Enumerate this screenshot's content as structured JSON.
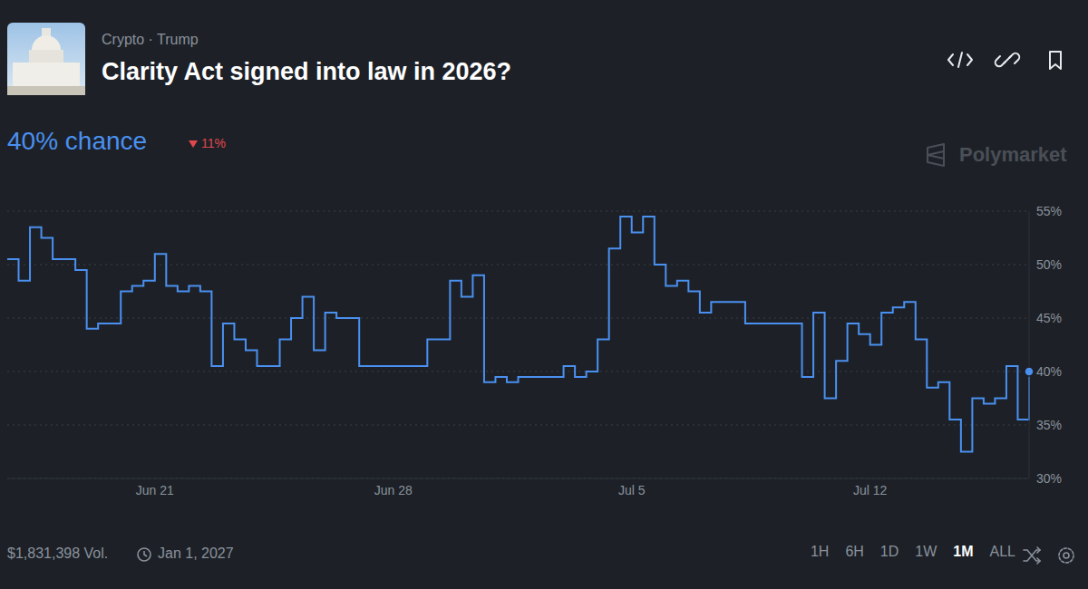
{
  "chart_data": {
    "type": "line",
    "title": "Clarity Act signed into law in 2026?",
    "subtitle": "Crypto · Trump",
    "headline": "40% chance",
    "change": "11%",
    "watermark": "Polymarket",
    "volume": "$1,831,398 Vol.",
    "end_date": "Jan 1, 2027",
    "ranges": [
      "1H",
      "6H",
      "1D",
      "1W",
      "1M",
      "ALL"
    ],
    "selected_range": "1M",
    "categories": [
      null,
      null,
      null,
      null,
      null,
      null,
      null,
      null,
      null,
      null,
      null,
      null,
      null,
      "Jun 21",
      null,
      null,
      null,
      null,
      null,
      null,
      null,
      null,
      null,
      null,
      null,
      null,
      null,
      null,
      null,
      null,
      null,
      null,
      null,
      null,
      "Jun 28",
      null,
      null,
      null,
      null,
      null,
      null,
      null,
      null,
      null,
      null,
      null,
      null,
      null,
      null,
      null,
      null,
      null,
      null,
      null,
      null,
      "Jul 5",
      null,
      null,
      null,
      null,
      null,
      null,
      null,
      null,
      null,
      null,
      null,
      null,
      null,
      null,
      null,
      null,
      null,
      null,
      null,
      null,
      "Jul 12",
      null,
      null,
      null,
      null,
      null,
      null,
      null,
      null,
      null,
      null,
      null,
      null,
      null,
      null
    ],
    "values": [
      50.5,
      48.5,
      53.5,
      52.5,
      50.5,
      50.5,
      49.5,
      44,
      44.5,
      44.5,
      47.5,
      48,
      48.5,
      51,
      48,
      47.5,
      48,
      47.5,
      40.5,
      44.5,
      43,
      42,
      40.5,
      40.5,
      43,
      45,
      47,
      42,
      45.5,
      45,
      45,
      40.5,
      40.5,
      40.5,
      40.5,
      40.5,
      40.5,
      43,
      43,
      48.5,
      47,
      49,
      39,
      39.5,
      39,
      39.5,
      39.5,
      39.5,
      39.5,
      40.5,
      39.5,
      40,
      43,
      51.5,
      54.5,
      53,
      54.5,
      50,
      48,
      48.5,
      47.5,
      45.5,
      46.5,
      46.5,
      46.5,
      44.5,
      44.5,
      44.5,
      44.5,
      44.5,
      39.5,
      45.5,
      37.5,
      41,
      44.5,
      43.5,
      42.5,
      45.5,
      46,
      46.5,
      43,
      38.5,
      39,
      35.5,
      32.5,
      37.5,
      37,
      37.5,
      40.5,
      35.5,
      40
    ],
    "color": "#4a90f0",
    "line_style": "step",
    "marker": "end",
    "ylim": [
      30,
      55
    ],
    "yticks": [
      {
        "value": 30,
        "label": "30%"
      },
      {
        "value": 35,
        "label": "35%"
      },
      {
        "value": 40,
        "label": "40%"
      },
      {
        "value": 45,
        "label": "45%"
      },
      {
        "value": 50,
        "label": "50%"
      },
      {
        "value": 55,
        "label": "55%"
      }
    ],
    "grid": true
  }
}
